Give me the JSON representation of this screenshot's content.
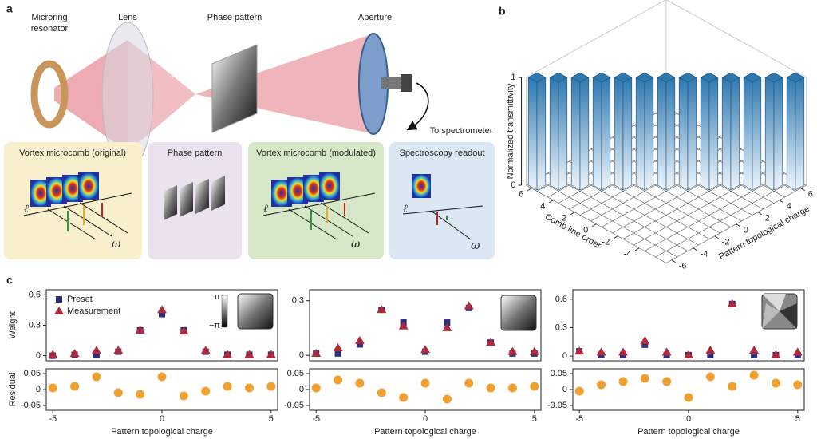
{
  "panel_a": {
    "label": "a",
    "microring": [
      "Microring",
      "resonator"
    ],
    "lens": "Lens",
    "phase_pattern": "Phase pattern",
    "aperture": "Aperture",
    "spectrometer": "To spectrometer",
    "boxes": [
      "Vortex microcomb (original)",
      "Phase pattern",
      "Vortex microcomb (modulated)",
      "Spectroscopy readout"
    ],
    "ell": "ℓ",
    "omega": "ω"
  },
  "panel_b": {
    "label": "b"
  },
  "panel_c": {
    "label": "c"
  },
  "chart_data": [
    {
      "type": "bar3d",
      "zlabel": "Normalized transmittivity",
      "xlabel": "Comb line order",
      "ylabel": "Pattern topological charge",
      "xlim": [
        -6.5,
        6.5
      ],
      "ylim": [
        -6.5,
        6.5
      ],
      "zlim": [
        0,
        1
      ],
      "xticks": [
        -4,
        -2,
        0,
        2,
        4,
        6
      ],
      "yticks": [
        -6,
        -4,
        -2,
        0,
        2,
        4,
        6
      ],
      "zticks": [
        0,
        1
      ],
      "x": [
        -6,
        -5,
        -4,
        -3,
        -2,
        -1,
        0,
        1,
        2,
        3,
        4,
        5,
        6
      ],
      "y": [
        6,
        5,
        4,
        3,
        2,
        1,
        0,
        -1,
        -2,
        -3,
        -4,
        -5,
        -6
      ],
      "values": [
        1,
        1,
        1,
        1,
        1,
        1,
        1,
        1,
        1,
        1,
        1,
        1,
        1
      ],
      "color": "#2e78b0"
    },
    {
      "type": "scatter",
      "ylabel": "Weight",
      "legend": true,
      "colorbar_labels": [
        "π",
        "−π"
      ],
      "x": [
        -5,
        -4,
        -3,
        -2,
        -1,
        0,
        1,
        2,
        3,
        4,
        5
      ],
      "xlim": [
        -5.3,
        5.3
      ],
      "ylim": [
        -0.05,
        0.65
      ],
      "yticks": [
        0,
        0.3,
        0.6
      ],
      "series": [
        {
          "name": "Preset",
          "color": "#2d2d7a",
          "marker": "square",
          "values": [
            0,
            0.01,
            0.01,
            0.04,
            0.25,
            0.41,
            0.25,
            0.04,
            0.01,
            0.01,
            0.01
          ]
        },
        {
          "name": "Measurement",
          "color": "#b0283c",
          "marker": "triangle",
          "values": [
            0.01,
            0.02,
            0.05,
            0.05,
            0.25,
            0.45,
            0.24,
            0.05,
            0.01,
            0.01,
            0.01
          ]
        }
      ]
    },
    {
      "type": "scatter",
      "ylabel": "Residual",
      "xlabel": "Pattern topological charge",
      "x": [
        -5,
        -4,
        -3,
        -2,
        -1,
        0,
        1,
        2,
        3,
        4,
        5
      ],
      "xlim": [
        -5.3,
        5.3
      ],
      "xticks": [
        -5,
        0,
        5
      ],
      "ylim": [
        -0.065,
        0.065
      ],
      "yticks": [
        -0.05,
        0,
        0.05
      ],
      "series": [
        {
          "color": "#f0a030",
          "marker": "circle",
          "values": [
            0.005,
            0.01,
            0.04,
            -0.01,
            -0.015,
            0.04,
            -0.02,
            -0.005,
            0.01,
            0.005,
            0.01
          ]
        }
      ]
    },
    {
      "type": "scatter",
      "x": [
        -5,
        -4,
        -3,
        -2,
        -1,
        0,
        1,
        2,
        3,
        4,
        5
      ],
      "xlim": [
        -5.3,
        5.3
      ],
      "ylim": [
        -0.03,
        0.36
      ],
      "yticks": [
        0,
        0.3
      ],
      "series": [
        {
          "color": "#2d2d7a",
          "marker": "square",
          "values": [
            0.01,
            0.01,
            0.06,
            0.25,
            0.18,
            0.02,
            0.18,
            0.26,
            0.07,
            0.01,
            0.01
          ]
        },
        {
          "color": "#b0283c",
          "marker": "triangle",
          "values": [
            0.01,
            0.04,
            0.08,
            0.25,
            0.16,
            0.03,
            0.15,
            0.27,
            0.07,
            0.02,
            0.02
          ]
        }
      ]
    },
    {
      "type": "scatter",
      "xlabel": "Pattern topological charge",
      "x": [
        -5,
        -4,
        -3,
        -2,
        -1,
        0,
        1,
        2,
        3,
        4,
        5
      ],
      "xlim": [
        -5.3,
        5.3
      ],
      "xticks": [
        -5,
        0,
        5
      ],
      "ylim": [
        -0.065,
        0.065
      ],
      "yticks": [
        -0.05,
        0,
        0.05
      ],
      "series": [
        {
          "color": "#f0a030",
          "marker": "circle",
          "values": [
            0.005,
            0.03,
            0.02,
            -0.01,
            -0.025,
            0.02,
            -0.03,
            0.02,
            0.005,
            0.005,
            0.01
          ]
        }
      ]
    },
    {
      "type": "scatter",
      "x": [
        -5,
        -4,
        -3,
        -2,
        -1,
        0,
        1,
        2,
        3,
        4,
        5
      ],
      "xlim": [
        -5.3,
        5.3
      ],
      "ylim": [
        -0.05,
        0.7
      ],
      "yticks": [
        0,
        0.3,
        0.6
      ],
      "series": [
        {
          "color": "#2d2d7a",
          "marker": "square",
          "values": [
            0.05,
            0.01,
            0.01,
            0.12,
            0.01,
            0.01,
            0.01,
            0.55,
            0.01,
            0.01,
            0.01
          ]
        },
        {
          "color": "#b0283c",
          "marker": "triangle",
          "values": [
            0.05,
            0.04,
            0.04,
            0.16,
            0.04,
            0.01,
            0.06,
            0.55,
            0.06,
            0.01,
            0.04
          ]
        }
      ]
    },
    {
      "type": "scatter",
      "xlabel": "Pattern topological charge",
      "x": [
        -5,
        -4,
        -3,
        -2,
        -1,
        0,
        1,
        2,
        3,
        4,
        5
      ],
      "xlim": [
        -5.3,
        5.3
      ],
      "xticks": [
        -5,
        0,
        5
      ],
      "ylim": [
        -0.065,
        0.065
      ],
      "yticks": [
        -0.05,
        0,
        0.05
      ],
      "series": [
        {
          "color": "#f0a030",
          "marker": "circle",
          "values": [
            -0.005,
            0.015,
            0.025,
            0.035,
            0.025,
            -0.025,
            0.04,
            0.01,
            0.045,
            0.02,
            0.015
          ]
        }
      ]
    }
  ]
}
